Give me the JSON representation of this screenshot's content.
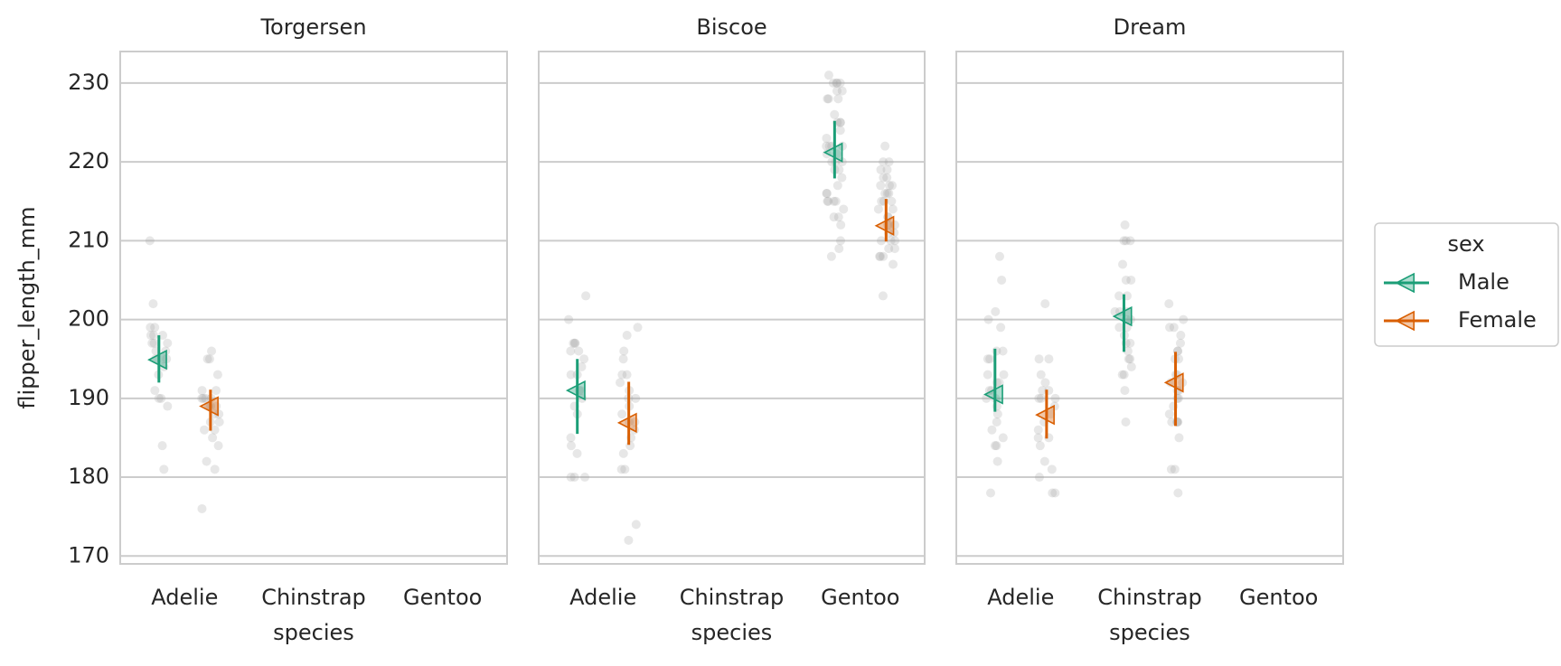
{
  "chart_data": {
    "type": "point_strip",
    "y_label": "flipper_length_mm",
    "x_label": "species",
    "legend_title": "sex",
    "legend": "right",
    "grid": true,
    "strip_color": "#9e9e9e",
    "categories": [
      "Adelie",
      "Chinstrap",
      "Gentoo"
    ],
    "ylim": [
      169,
      234
    ],
    "yticks": [
      170,
      180,
      190,
      200,
      210,
      220,
      230
    ],
    "series": [
      {
        "name": "Male",
        "color": "#1b9e77"
      },
      {
        "name": "Female",
        "color": "#d95f02"
      }
    ],
    "facets": [
      {
        "title": "Torgersen",
        "series": [
          {
            "values": [
              194.9,
              null,
              null
            ],
            "ci_low": [
              192.0,
              null,
              null
            ],
            "ci_high": [
              198.0,
              null,
              null
            ],
            "points": [
              [
                210,
                202,
                199,
                199,
                198,
                198,
                197,
                197,
                196,
                195,
                195,
                194,
                193,
                191,
                190,
                190,
                189,
                184,
                181,
                196,
                197,
                198,
                195
              ],
              [],
              []
            ]
          },
          {
            "values": [
              189.0,
              null,
              null
            ],
            "ci_low": [
              185.9,
              null,
              null
            ],
            "ci_high": [
              191.1,
              null,
              null
            ],
            "points": [
              [
                196,
                195,
                195,
                193,
                191,
                191,
                190,
                190,
                190,
                189,
                189,
                188,
                187,
                187,
                186,
                186,
                185,
                184,
                182,
                181,
                176,
                190,
                189,
                188
              ],
              [],
              []
            ]
          }
        ]
      },
      {
        "title": "Biscoe",
        "series": [
          {
            "values": [
              191.0,
              null,
              221.2
            ],
            "ci_low": [
              185.5,
              null,
              217.9
            ],
            "ci_high": [
              195.0,
              null,
              225.2
            ],
            "points": [
              [
                203,
                200,
                197,
                197,
                196,
                195,
                194,
                193,
                191,
                190,
                189,
                188,
                185,
                184,
                183,
                180,
                180,
                180,
                191,
                193,
                196,
                197
              ],
              [],
              [
                231,
                230,
                230,
                230,
                229,
                229,
                228,
                228,
                226,
                225,
                225,
                224,
                223,
                222,
                222,
                221,
                220,
                220,
                219,
                218,
                217,
                216,
                215,
                215,
                215,
                215,
                214,
                213,
                213,
                212,
                210,
                209,
                208,
                230,
                228,
                225,
                222,
                221,
                220,
                216,
                219,
                222
              ]
            ]
          },
          {
            "values": [
              186.9,
              null,
              211.9
            ],
            "ci_low": [
              184.1,
              null,
              209.9
            ],
            "ci_high": [
              192.1,
              null,
              215.3
            ],
            "points": [
              [
                199,
                198,
                195,
                193,
                192,
                191,
                190,
                189,
                188,
                187,
                186,
                185,
                184,
                183,
                181,
                181,
                174,
                172,
                190,
                187,
                196,
                193
              ],
              [],
              [
                222,
                220,
                220,
                219,
                218,
                217,
                217,
                216,
                216,
                215,
                215,
                214,
                213,
                212,
                212,
                211,
                210,
                210,
                210,
                209,
                209,
                208,
                208,
                208,
                207,
                203,
                212,
                213,
                211,
                214,
                215,
                216,
                217,
                218,
                219
              ]
            ]
          }
        ]
      },
      {
        "title": "Dream",
        "series": [
          {
            "values": [
              190.5,
              200.4,
              null
            ],
            "ci_low": [
              188.3,
              195.9,
              null
            ],
            "ci_high": [
              196.3,
              203.2,
              null
            ],
            "points": [
              [
                208,
                205,
                201,
                200,
                199,
                196,
                196,
                195,
                193,
                193,
                192,
                191,
                190,
                190,
                189,
                188,
                187,
                186,
                185,
                184,
                184,
                182,
                178,
                191,
                192,
                195
              ],
              [
                212,
                210,
                210,
                210,
                207,
                205,
                205,
                203,
                203,
                201,
                201,
                200,
                200,
                199,
                198,
                197,
                196,
                195,
                195,
                194,
                193,
                193,
                191,
                187,
                201,
                199,
                197
              ],
              []
            ]
          },
          {
            "values": [
              187.9,
              192.0,
              null
            ],
            "ci_low": [
              184.9,
              186.5,
              null
            ],
            "ci_high": [
              191.1,
              195.9,
              null
            ],
            "points": [
              [
                202,
                195,
                195,
                193,
                192,
                191,
                190,
                190,
                189,
                188,
                187,
                186,
                185,
                185,
                184,
                182,
                181,
                180,
                178,
                178,
                190,
                191
              ],
              [
                202,
                200,
                199,
                199,
                198,
                197,
                196,
                196,
                195,
                195,
                193,
                192,
                191,
                190,
                190,
                189,
                188,
                187,
                187,
                187,
                187,
                185,
                181,
                181,
                178,
                193,
                192,
                191
              ],
              []
            ]
          }
        ]
      }
    ]
  }
}
